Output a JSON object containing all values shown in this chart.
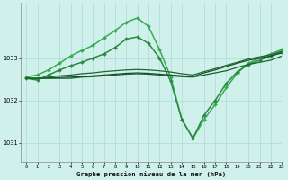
{
  "title": "Graphe pression niveau de la mer (hPa)",
  "background_color": "#cff0eb",
  "grid_color": "#aaddd8",
  "xlim": [
    -0.5,
    23
  ],
  "ylim": [
    1030.55,
    1034.3
  ],
  "yticks": [
    1031,
    1032,
    1033
  ],
  "xticks": [
    0,
    1,
    2,
    3,
    4,
    5,
    6,
    7,
    8,
    9,
    10,
    11,
    12,
    13,
    14,
    15,
    16,
    17,
    18,
    19,
    20,
    21,
    22,
    23
  ],
  "series": [
    {
      "x": [
        0,
        1,
        2,
        3,
        4,
        5,
        6,
        7,
        8,
        9,
        10,
        11,
        12,
        13,
        14,
        15,
        16,
        17,
        18,
        19,
        20,
        21,
        22,
        23
      ],
      "y": [
        1032.55,
        1032.6,
        1032.72,
        1032.88,
        1033.05,
        1033.18,
        1033.3,
        1033.48,
        1033.65,
        1033.85,
        1033.95,
        1033.75,
        1033.2,
        1032.55,
        1031.55,
        1031.1,
        1031.55,
        1031.9,
        1032.3,
        1032.65,
        1032.88,
        1033.0,
        1033.1,
        1033.2
      ],
      "color": "#3aaa50",
      "lw": 1.1,
      "marker": "D",
      "ms": 2.0
    },
    {
      "x": [
        0,
        1,
        2,
        3,
        4,
        5,
        6,
        7,
        8,
        9,
        10,
        11,
        12,
        13,
        14,
        15,
        16,
        17,
        18,
        19,
        20,
        21,
        22,
        23
      ],
      "y": [
        1032.52,
        1032.48,
        1032.6,
        1032.72,
        1032.82,
        1032.9,
        1033.0,
        1033.1,
        1033.25,
        1033.45,
        1033.5,
        1033.35,
        1033.0,
        1032.45,
        1031.55,
        1031.1,
        1031.65,
        1032.0,
        1032.4,
        1032.68,
        1032.85,
        1032.95,
        1033.05,
        1033.15
      ],
      "color": "#2a8a40",
      "lw": 1.1,
      "marker": "D",
      "ms": 2.0
    },
    {
      "x": [
        0,
        1,
        2,
        3,
        4,
        5,
        6,
        7,
        8,
        9,
        10,
        11,
        12,
        13,
        14,
        15,
        16,
        17,
        18,
        19,
        20,
        21,
        22,
        23
      ],
      "y": [
        1032.52,
        1032.52,
        1032.52,
        1032.52,
        1032.52,
        1032.55,
        1032.56,
        1032.58,
        1032.6,
        1032.62,
        1032.63,
        1032.62,
        1032.6,
        1032.58,
        1032.56,
        1032.55,
        1032.6,
        1032.65,
        1032.7,
        1032.78,
        1032.85,
        1032.9,
        1032.95,
        1033.05
      ],
      "color": "#1a6030",
      "lw": 0.9,
      "marker": null,
      "ms": 0
    },
    {
      "x": [
        0,
        1,
        2,
        3,
        4,
        5,
        6,
        7,
        8,
        9,
        10,
        11,
        12,
        13,
        14,
        15,
        16,
        17,
        18,
        19,
        20,
        21,
        22,
        23
      ],
      "y": [
        1032.52,
        1032.52,
        1032.53,
        1032.54,
        1032.55,
        1032.56,
        1032.58,
        1032.6,
        1032.62,
        1032.64,
        1032.65,
        1032.64,
        1032.62,
        1032.6,
        1032.58,
        1032.56,
        1032.65,
        1032.72,
        1032.8,
        1032.88,
        1032.95,
        1033.0,
        1033.05,
        1033.12
      ],
      "color": "#1a5028",
      "lw": 0.9,
      "marker": null,
      "ms": 0
    },
    {
      "x": [
        0,
        1,
        2,
        3,
        4,
        5,
        6,
        7,
        8,
        9,
        10,
        11,
        12,
        13,
        14,
        15,
        16,
        17,
        18,
        19,
        20,
        21,
        22,
        23
      ],
      "y": [
        1032.52,
        1032.52,
        1032.55,
        1032.58,
        1032.6,
        1032.63,
        1032.65,
        1032.68,
        1032.7,
        1032.72,
        1032.73,
        1032.72,
        1032.7,
        1032.67,
        1032.63,
        1032.6,
        1032.68,
        1032.75,
        1032.83,
        1032.9,
        1032.98,
        1033.03,
        1033.08,
        1033.16
      ],
      "color": "#236535",
      "lw": 0.9,
      "marker": null,
      "ms": 0
    }
  ]
}
